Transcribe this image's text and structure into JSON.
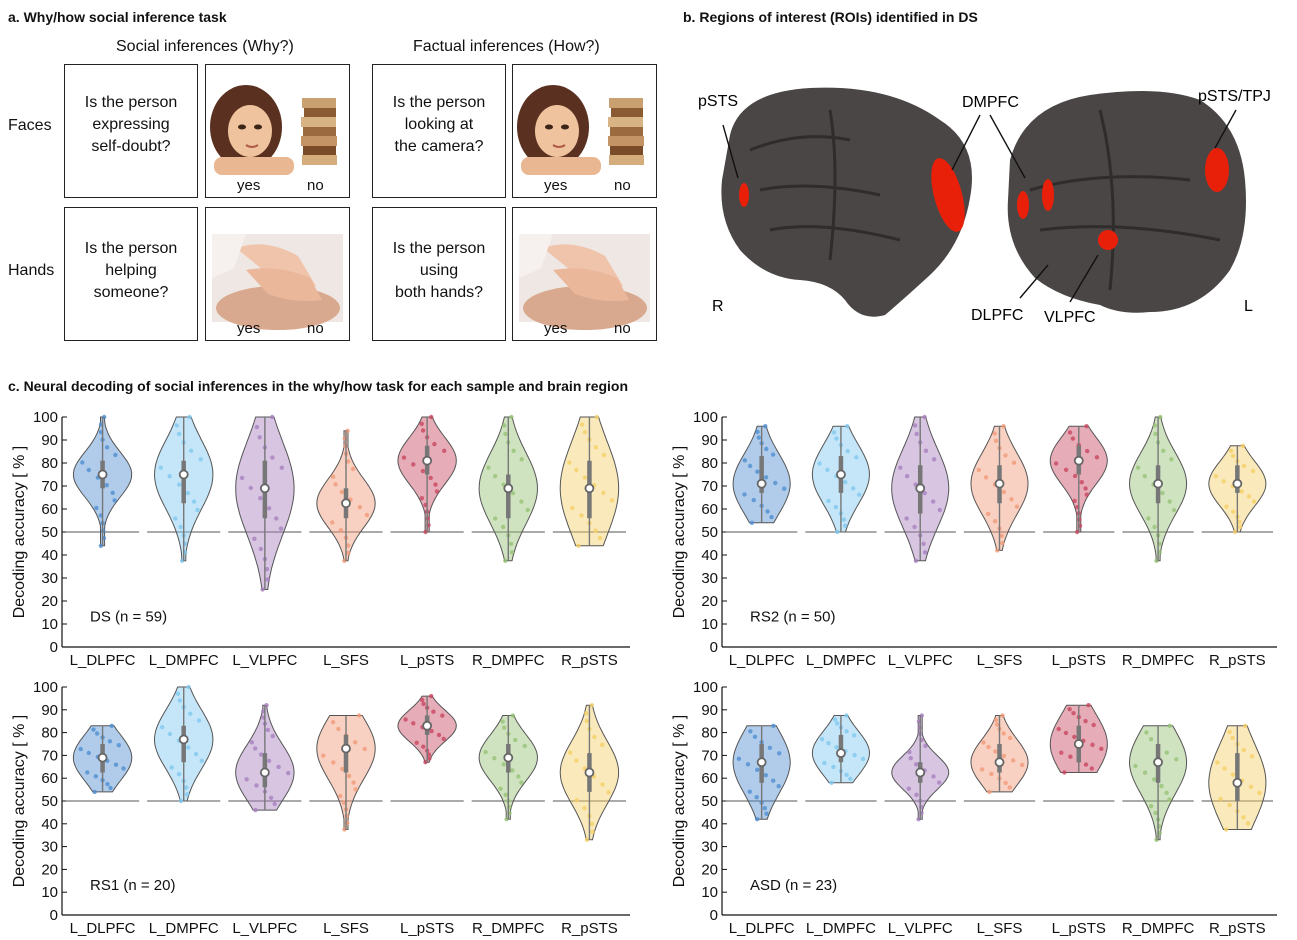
{
  "panel_a": {
    "title": "a. Why/how social inference task",
    "col_social": "Social inferences (Why?)",
    "col_factual": "Factual inferences (How?)",
    "row_faces": "Faces",
    "row_hands": "Hands",
    "q_face_social": [
      "Is the person",
      "expressing",
      "self-doubt?"
    ],
    "q_face_factual": [
      "Is the person",
      "looking at",
      "the camera?"
    ],
    "q_hand_social": [
      "Is the person",
      "helping",
      "someone?"
    ],
    "q_hand_factual": [
      "Is the person",
      "using",
      "both hands?"
    ],
    "yes": "yes",
    "no": "no"
  },
  "panel_b": {
    "title": "b. Regions of interest (ROIs) identified in DS",
    "labels": {
      "pSTS": "pSTS",
      "DMPFC": "DMPFC",
      "pSTS_TPJ": "pSTS/TPJ",
      "R": "R",
      "L": "L",
      "DLPFC": "DLPFC",
      "VLPFC": "VLPFC"
    },
    "colors": {
      "brain": "#4a4645",
      "roi": "#e8200a"
    }
  },
  "panel_c": {
    "title": "c. Neural decoding of social inferences in the why/how task for each sample and brain region"
  },
  "chart_data": [
    {
      "type": "violin",
      "sample": "DS (n = 59)",
      "ylabel": "Decoding accuracy [ % ]",
      "ylim": [
        0,
        100
      ],
      "yticks": [
        0,
        10,
        20,
        30,
        40,
        50,
        60,
        70,
        80,
        90,
        100
      ],
      "chance": 50,
      "categories": [
        "L_DLPFC",
        "L_DMPFC",
        "L_VLPFC",
        "L_SFS",
        "L_pSTS",
        "R_DMPFC",
        "R_pSTS"
      ],
      "median": [
        75,
        75,
        69,
        62.5,
        81,
        69,
        69
      ],
      "q1": [
        69,
        62.5,
        56,
        56,
        75,
        56,
        56
      ],
      "q3": [
        81,
        81,
        81,
        69,
        87.5,
        75,
        81
      ],
      "min": [
        44,
        37.5,
        25,
        37.5,
        50,
        37.5,
        44
      ],
      "max": [
        100,
        100,
        100,
        94,
        100,
        100,
        100
      ]
    },
    {
      "type": "violin",
      "sample": "RS2 (n = 50)",
      "ylabel": "Decoding accuracy [ % ]",
      "ylim": [
        0,
        100
      ],
      "yticks": [
        0,
        10,
        20,
        30,
        40,
        50,
        60,
        70,
        80,
        90,
        100
      ],
      "chance": 50,
      "categories": [
        "L_DLPFC",
        "L_DMPFC",
        "L_VLPFC",
        "L_SFS",
        "L_pSTS",
        "R_DMPFC",
        "R_pSTS"
      ],
      "median": [
        71,
        75,
        69,
        71,
        81,
        71,
        71
      ],
      "q1": [
        67,
        67,
        58,
        62.5,
        75,
        62.5,
        67
      ],
      "q3": [
        83,
        83,
        79,
        79,
        87.5,
        79,
        79
      ],
      "min": [
        54,
        50,
        37.5,
        42,
        50,
        37.5,
        50
      ],
      "max": [
        96,
        96,
        100,
        96,
        96,
        100,
        87.5
      ]
    },
    {
      "type": "violin",
      "sample": "RS1 (n = 20)",
      "ylabel": "Decoding accuracy [ % ]",
      "ylim": [
        0,
        100
      ],
      "yticks": [
        0,
        10,
        20,
        30,
        40,
        50,
        60,
        70,
        80,
        90,
        100
      ],
      "chance": 50,
      "categories": [
        "L_DLPFC",
        "L_DMPFC",
        "L_VLPFC",
        "L_SFS",
        "L_pSTS",
        "R_DMPFC",
        "R_pSTS"
      ],
      "median": [
        69,
        77,
        62.5,
        73,
        83,
        69,
        62.5
      ],
      "q1": [
        62.5,
        67,
        56,
        62.5,
        79,
        62.5,
        54
      ],
      "q3": [
        75,
        83,
        71,
        79,
        87.5,
        75,
        71
      ],
      "min": [
        54,
        50,
        46,
        37.5,
        67,
        42,
        33
      ],
      "max": [
        83,
        100,
        92,
        87.5,
        96,
        87.5,
        92
      ]
    },
    {
      "type": "violin",
      "sample": "ASD (n = 23)",
      "ylabel": "Decoding accuracy [ % ]",
      "ylim": [
        0,
        100
      ],
      "yticks": [
        0,
        10,
        20,
        30,
        40,
        50,
        60,
        70,
        80,
        90,
        100
      ],
      "chance": 50,
      "categories": [
        "L_DLPFC",
        "L_DMPFC",
        "L_VLPFC",
        "L_SFS",
        "L_pSTS",
        "R_DMPFC",
        "R_pSTS"
      ],
      "median": [
        67,
        71,
        62.5,
        67,
        75,
        67,
        58
      ],
      "q1": [
        58,
        67,
        58,
        62.5,
        67,
        58,
        50
      ],
      "q3": [
        75,
        79,
        67,
        75,
        83,
        75,
        71
      ],
      "min": [
        42,
        58,
        42,
        54,
        62.5,
        33,
        37.5
      ],
      "max": [
        83,
        87.5,
        87.5,
        87.5,
        92,
        83,
        83
      ]
    }
  ],
  "violin_colors": [
    "#4f8fd0",
    "#7fc8ef",
    "#a77fbe",
    "#f09a78",
    "#c8475f",
    "#96c276",
    "#f5cf66"
  ]
}
